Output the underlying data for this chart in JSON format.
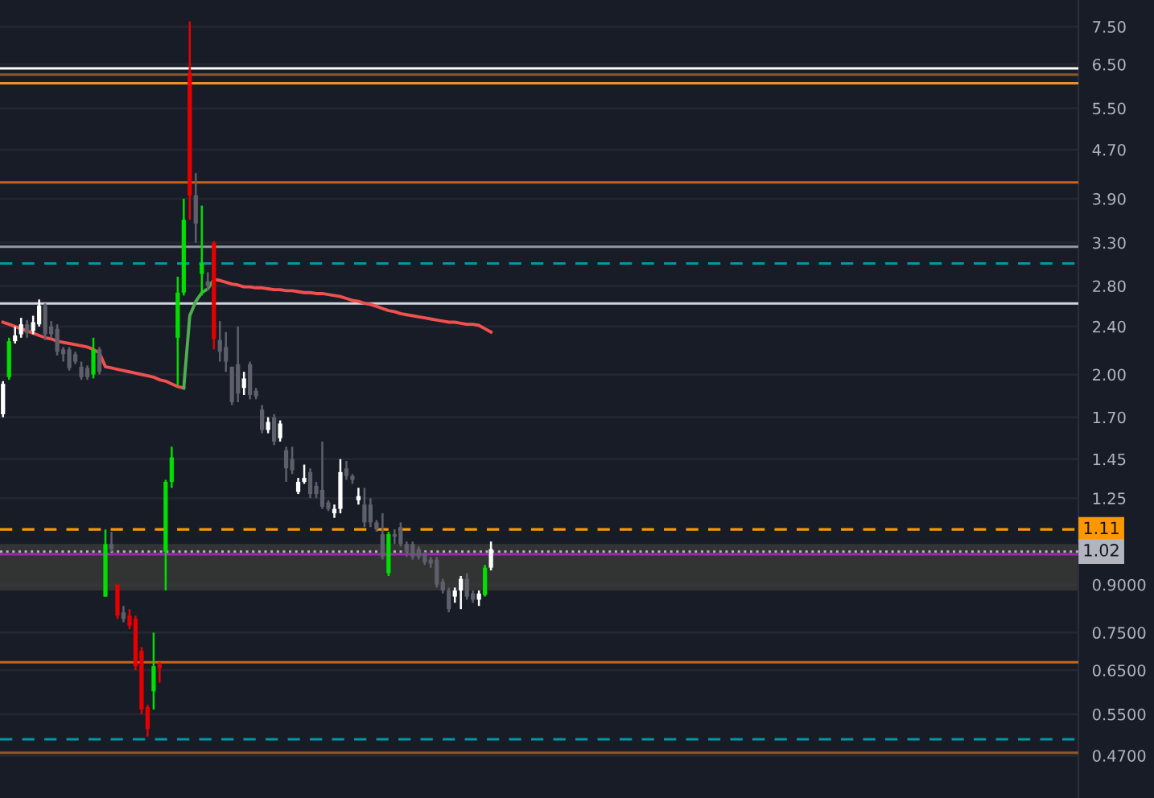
{
  "chart_data": {
    "type": "candlestick",
    "categories": [
      null,
      null,
      null,
      null,
      null,
      null,
      null,
      null,
      null,
      null,
      null,
      null,
      null,
      null,
      null,
      null,
      null,
      null,
      null,
      null,
      null,
      null,
      null,
      null,
      null,
      null,
      null,
      null,
      null,
      null,
      null,
      null,
      null,
      null,
      null,
      null,
      null,
      null,
      null,
      null,
      null,
      null,
      null,
      null,
      null,
      null,
      null,
      null,
      null,
      null,
      null,
      null,
      null,
      null,
      null,
      null,
      null,
      null,
      null,
      null,
      null,
      null,
      null,
      null,
      null,
      null,
      null,
      null,
      null,
      null,
      null,
      null,
      null,
      null,
      null,
      null,
      null,
      null,
      null,
      null,
      null,
      null,
      null,
      null,
      null,
      null,
      null,
      null,
      null,
      null,
      null,
      null,
      null,
      null,
      null,
      null,
      null,
      null,
      null,
      null,
      null,
      null,
      null,
      null,
      null,
      null,
      null,
      null,
      null,
      null,
      null,
      null,
      null,
      null,
      null,
      null,
      null,
      null,
      null,
      null,
      null,
      null,
      null,
      null,
      null,
      null,
      null,
      null,
      null,
      null,
      null,
      null,
      null,
      null,
      null,
      null,
      null,
      null,
      null,
      null,
      null,
      null,
      null,
      null,
      null,
      null,
      null,
      null,
      null,
      null,
      null,
      null,
      null,
      null,
      null,
      null,
      null,
      null,
      null,
      null,
      null,
      null,
      null,
      null,
      null,
      null,
      null,
      null,
      null,
      null,
      null,
      null,
      null,
      null,
      null,
      null,
      null,
      null,
      null
    ],
    "ohlc": [
      [
        1.72,
        1.95,
        1.7,
        1.93
      ],
      [
        1.98,
        2.3,
        1.96,
        2.27
      ],
      [
        2.27,
        2.4,
        2.25,
        2.32
      ],
      [
        2.33,
        2.48,
        2.3,
        2.42
      ],
      [
        2.42,
        2.46,
        2.3,
        2.34
      ],
      [
        2.36,
        2.5,
        2.33,
        2.44
      ],
      [
        2.42,
        2.66,
        2.4,
        2.6
      ],
      [
        2.6,
        2.62,
        2.28,
        2.33
      ],
      [
        2.4,
        2.45,
        2.3,
        2.33
      ],
      [
        2.38,
        2.42,
        2.15,
        2.18
      ],
      [
        2.2,
        2.22,
        2.1,
        2.16
      ],
      [
        2.2,
        2.22,
        2.03,
        2.05
      ],
      [
        2.16,
        2.18,
        2.08,
        2.1
      ],
      [
        2.06,
        2.1,
        1.96,
        1.98
      ],
      [
        2.05,
        2.07,
        1.96,
        1.98
      ],
      [
        2.0,
        2.3,
        1.97,
        2.2
      ],
      [
        2.2,
        2.22,
        2.0,
        2.02
      ],
      [
        0.86,
        1.11,
        0.86,
        1.05
      ],
      [
        1.05,
        1.1,
        1.02,
        1.03
      ],
      [
        0.9,
        0.9,
        0.79,
        0.8
      ],
      [
        0.81,
        0.83,
        0.78,
        0.79
      ],
      [
        0.8,
        0.82,
        0.76,
        0.77
      ],
      [
        0.79,
        0.8,
        0.65,
        0.66
      ],
      [
        0.7,
        0.71,
        0.55,
        0.56
      ],
      [
        0.565,
        0.57,
        0.505,
        0.52
      ],
      [
        0.6,
        0.75,
        0.56,
        0.66
      ],
      [
        0.665,
        0.67,
        0.62,
        0.655
      ],
      [
        1.02,
        1.34,
        0.88,
        1.33
      ],
      [
        1.33,
        1.52,
        1.3,
        1.46
      ],
      [
        2.3,
        2.9,
        1.92,
        2.73
      ],
      [
        2.73,
        3.9,
        2.7,
        3.6
      ],
      [
        6.3,
        7.65,
        3.6,
        3.95
      ],
      [
        3.95,
        4.3,
        3.3,
        3.55
      ],
      [
        2.93,
        3.8,
        2.7,
        3.05
      ],
      [
        2.85,
        2.95,
        2.75,
        2.8
      ],
      [
        3.3,
        3.32,
        2.2,
        2.29
      ],
      [
        2.28,
        2.45,
        2.1,
        2.18
      ],
      [
        2.22,
        2.35,
        2.02,
        2.1
      ],
      [
        2.06,
        2.06,
        1.78,
        1.8
      ],
      [
        2.08,
        2.4,
        1.8,
        1.86
      ],
      [
        1.9,
        2.02,
        1.85,
        1.97
      ],
      [
        2.08,
        2.1,
        1.82,
        1.85
      ],
      [
        1.88,
        1.9,
        1.82,
        1.84
      ],
      [
        1.75,
        1.78,
        1.6,
        1.62
      ],
      [
        1.62,
        1.7,
        1.6,
        1.67
      ],
      [
        1.7,
        1.72,
        1.53,
        1.55
      ],
      [
        1.57,
        1.68,
        1.55,
        1.66
      ],
      [
        1.5,
        1.52,
        1.33,
        1.4
      ],
      [
        1.45,
        1.52,
        1.37,
        1.39
      ],
      [
        1.28,
        1.35,
        1.27,
        1.33
      ],
      [
        1.33,
        1.42,
        1.32,
        1.35
      ],
      [
        1.38,
        1.4,
        1.25,
        1.27
      ],
      [
        1.31,
        1.33,
        1.25,
        1.27
      ],
      [
        1.29,
        1.55,
        1.2,
        1.21
      ],
      [
        1.23,
        1.24,
        1.19,
        1.2
      ],
      [
        1.18,
        1.22,
        1.16,
        1.2
      ],
      [
        1.2,
        1.45,
        1.18,
        1.38
      ],
      [
        1.4,
        1.44,
        1.34,
        1.36
      ],
      [
        1.36,
        1.37,
        1.32,
        1.34
      ],
      [
        1.24,
        1.3,
        1.22,
        1.26
      ],
      [
        1.22,
        1.3,
        1.12,
        1.14
      ],
      [
        1.22,
        1.25,
        1.12,
        1.14
      ],
      [
        1.14,
        1.15,
        1.1,
        1.11
      ],
      [
        1.09,
        1.18,
        0.99,
        1.0
      ],
      [
        0.94,
        1.1,
        0.93,
        1.09
      ],
      [
        1.09,
        1.11,
        1.05,
        1.08
      ],
      [
        1.12,
        1.14,
        1.04,
        1.05
      ],
      [
        1.05,
        1.06,
        1.0,
        1.02
      ],
      [
        1.05,
        1.06,
        0.99,
        1.0
      ],
      [
        1.03,
        1.04,
        0.99,
        1.0
      ],
      [
        1.01,
        1.02,
        0.97,
        0.98
      ],
      [
        0.99,
        1.0,
        0.96,
        0.975
      ],
      [
        0.99,
        1.0,
        0.89,
        0.9
      ],
      [
        0.91,
        0.92,
        0.87,
        0.88
      ],
      [
        0.88,
        0.89,
        0.81,
        0.82
      ],
      [
        0.86,
        0.89,
        0.84,
        0.88
      ],
      [
        0.88,
        0.93,
        0.82,
        0.92
      ],
      [
        0.92,
        0.94,
        0.85,
        0.86
      ],
      [
        0.87,
        0.88,
        0.84,
        0.85
      ],
      [
        0.85,
        0.88,
        0.83,
        0.87
      ],
      [
        0.865,
        0.97,
        0.86,
        0.96
      ],
      [
        0.96,
        1.06,
        0.95,
        1.03
      ],
      null,
      null,
      null,
      null,
      null,
      null,
      null,
      null,
      null,
      null,
      null,
      null,
      null,
      null,
      null,
      null,
      null,
      null,
      null,
      null,
      null,
      null,
      null,
      null,
      null,
      null,
      null,
      null,
      null,
      null,
      null,
      null,
      null,
      null,
      null,
      null,
      null,
      null,
      null,
      null,
      null,
      null,
      null,
      null,
      null,
      null,
      null,
      null,
      null,
      null,
      null,
      null,
      null,
      null,
      null,
      null,
      null,
      null,
      null,
      null,
      null,
      null,
      null,
      null,
      null,
      null,
      null,
      null,
      null,
      null,
      null,
      null,
      null,
      null,
      null,
      null,
      null,
      null,
      null,
      null,
      null,
      null,
      null,
      null,
      null,
      null,
      null,
      null,
      null,
      null,
      null,
      null,
      null,
      null,
      null,
      null,
      null
    ],
    "colors": [
      "#ffffff",
      "#00e000",
      "#ffffff",
      "#ffffff",
      "#5d606b",
      "#ffffff",
      "#ffffff",
      "#5d606b",
      "#5d606b",
      "#5d606b",
      "#5d606b",
      "#5d606b",
      "#5d606b",
      "#5d606b",
      "#5d606b",
      "#00e000",
      "#5d606b",
      "#00e000",
      "#5d606b",
      "#e80000",
      "#5d606b",
      "#e80000",
      "#e80000",
      "#e80000",
      "#e80000",
      "#00e000",
      "#e80000",
      "#00e000",
      "#00e000",
      "#00e000",
      "#00e000",
      "#e80000",
      "#5d606b",
      "#00e000",
      "#5d606b",
      "#e80000",
      "#5d606b",
      "#5d606b",
      "#5d606b",
      "#5d606b",
      "#ffffff",
      "#5d606b",
      "#5d606b",
      "#5d606b",
      "#ffffff",
      "#5d606b",
      "#ffffff",
      "#5d606b",
      "#5d606b",
      "#ffffff",
      "#ffffff",
      "#5d606b",
      "#5d606b",
      "#5d606b",
      "#5d606b",
      "#ffffff",
      "#ffffff",
      "#5d606b",
      "#5d606b",
      "#ffffff",
      "#5d606b",
      "#5d606b",
      "#5d606b",
      "#5d606b",
      "#00e000",
      "#5d606b",
      "#5d606b",
      "#5d606b",
      "#5d606b",
      "#5d606b",
      "#5d606b",
      "#5d606b",
      "#5d606b",
      "#5d606b",
      "#5d606b",
      "#ffffff",
      "#ffffff",
      "#5d606b",
      "#5d606b",
      "#ffffff",
      "#00e000",
      "#ffffff",
      null,
      null,
      null,
      null,
      null,
      null,
      null,
      null,
      null,
      null,
      null,
      null,
      null,
      null,
      null,
      null,
      null,
      null,
      null,
      null,
      null,
      null,
      null,
      null,
      null,
      null,
      null,
      null,
      null,
      null,
      null,
      null,
      null,
      null,
      null,
      null,
      null,
      null,
      null,
      null,
      null,
      null,
      null,
      null,
      null,
      null,
      null,
      null,
      null,
      null,
      null,
      null,
      null,
      null,
      null,
      null,
      null,
      null,
      null,
      null,
      null,
      null,
      null,
      null,
      null,
      null,
      null,
      null,
      null,
      null,
      null,
      null,
      null,
      null,
      null,
      null,
      null,
      null,
      null,
      null,
      null,
      null,
      null,
      null,
      null,
      null,
      null,
      null,
      null,
      null,
      null,
      null,
      null,
      null,
      null,
      null,
      null
    ],
    "series": [
      {
        "type": "line",
        "color": "#f05050",
        "values": [
          2.44,
          2.42,
          2.4,
          2.38,
          2.36,
          2.34,
          2.32,
          2.3,
          2.29,
          2.27,
          2.26,
          2.25,
          2.24,
          2.23,
          2.22,
          2.2,
          2.17,
          2.06,
          2.05,
          2.04,
          2.03,
          2.02,
          2.01,
          2.0,
          1.99,
          1.98,
          1.96,
          1.95,
          1.93,
          1.91,
          1.9,
          null,
          null,
          null,
          null,
          2.87,
          2.86,
          2.84,
          2.82,
          2.81,
          2.79,
          2.79,
          2.78,
          2.78,
          2.77,
          2.76,
          2.76,
          2.75,
          2.75,
          2.74,
          2.73,
          2.73,
          2.72,
          2.72,
          2.71,
          2.7,
          2.69,
          2.67,
          2.65,
          2.64,
          2.62,
          2.61,
          2.59,
          2.57,
          2.55,
          2.54,
          2.52,
          2.51,
          2.5,
          2.49,
          2.48,
          2.47,
          2.46,
          2.45,
          2.44,
          2.44,
          2.43,
          2.42,
          2.42,
          2.41,
          2.38,
          2.35,
          null,
          null,
          null,
          null,
          null,
          null,
          null,
          null,
          null,
          null,
          null,
          null,
          null,
          null,
          null,
          null,
          null,
          null,
          null,
          null,
          null,
          null,
          null,
          null,
          null,
          null,
          null,
          null,
          null,
          null,
          null,
          null,
          null,
          null,
          null,
          null,
          null,
          null,
          null,
          null,
          null,
          null,
          null,
          null,
          null,
          null,
          null,
          null,
          null,
          null,
          null,
          null,
          null,
          null,
          null,
          null,
          null,
          null,
          null,
          null,
          null,
          null,
          null,
          null,
          null,
          null,
          null,
          null,
          null,
          null,
          null,
          null,
          null,
          null,
          null,
          null,
          null,
          null,
          null,
          null,
          null,
          null,
          null,
          null,
          null,
          null,
          null,
          null,
          null,
          null,
          null,
          null,
          null,
          null,
          null,
          null,
          null
        ]
      },
      {
        "type": "line",
        "color": "#4caf50",
        "values": [
          null,
          null,
          null,
          null,
          null,
          null,
          null,
          null,
          null,
          null,
          null,
          null,
          null,
          null,
          null,
          null,
          null,
          null,
          null,
          null,
          null,
          null,
          null,
          null,
          null,
          null,
          null,
          null,
          null,
          null,
          1.9,
          2.5,
          2.64,
          2.73,
          2.77,
          2.87,
          null,
          null,
          null,
          null,
          null,
          null,
          null,
          null,
          null,
          null,
          null,
          null,
          null,
          null,
          null,
          null,
          null,
          null,
          null,
          null,
          null,
          null,
          null,
          null,
          null,
          null,
          null,
          null,
          null,
          null,
          null,
          null,
          null,
          null,
          null,
          null,
          null,
          null,
          null,
          null,
          null,
          null,
          null,
          null,
          null,
          null,
          null,
          null,
          null,
          null,
          null,
          null,
          null,
          null,
          null,
          null,
          null,
          null,
          null,
          null,
          null,
          null,
          null,
          null,
          null,
          null,
          null,
          null,
          null,
          null,
          null,
          null,
          null,
          null,
          null,
          null,
          null,
          null,
          null,
          null,
          null,
          null,
          null,
          null,
          null,
          null,
          null,
          null,
          null,
          null,
          null,
          null,
          null,
          null,
          null,
          null,
          null,
          null,
          null,
          null,
          null,
          null,
          null,
          null,
          null,
          null,
          null,
          null,
          null,
          null,
          null,
          null,
          null,
          null,
          null,
          null,
          null,
          null,
          null,
          null,
          null,
          null,
          null,
          null,
          null,
          null,
          null,
          null,
          null,
          null,
          null,
          null,
          null,
          null,
          null,
          null,
          null,
          null,
          null,
          null,
          null,
          null,
          null
        ]
      }
    ],
    "ref_lines": [
      {
        "axis": "y",
        "value": 6.4,
        "color": "#ffffff",
        "line_style": "solid"
      },
      {
        "axis": "y",
        "value": 6.25,
        "color": "#8a5a2a",
        "line_style": "solid"
      },
      {
        "axis": "y",
        "value": 6.05,
        "color": "#e8922a",
        "line_style": "solid"
      },
      {
        "axis": "y",
        "value": 4.15,
        "color": "#c8641a",
        "line_style": "solid"
      },
      {
        "axis": "y",
        "value": 3.25,
        "color": "#9598a1",
        "line_style": "solid"
      },
      {
        "axis": "y",
        "value": 3.05,
        "color": "#0097a7",
        "line_style": "dashed"
      },
      {
        "axis": "y",
        "value": 2.62,
        "color": "#d1d4dc",
        "line_style": "solid"
      },
      {
        "axis": "y",
        "value": 1.11,
        "color": "#ff9800",
        "line_style": "dashed",
        "label": "1.11"
      },
      {
        "axis": "y",
        "value": 1.02,
        "color": "#b2b5be",
        "line_style": "dotted",
        "label": "1.02"
      },
      {
        "axis": "y",
        "value": 1.01,
        "color": "#9c27b0",
        "line_style": "solid"
      },
      {
        "axis": "y",
        "value": 0.67,
        "color": "#c8641a",
        "line_style": "solid"
      },
      {
        "axis": "y",
        "value": 0.5,
        "color": "#0097a7",
        "line_style": "dashed"
      },
      {
        "axis": "y",
        "value": 0.475,
        "color": "#8a5a2a",
        "line_style": "solid"
      }
    ],
    "bands": [
      {
        "axis": "y",
        "from": 0.88,
        "to": 1.05,
        "color": "#3a3b38"
      }
    ],
    "log": true,
    "ylim": [
      0.4,
      8.3
    ],
    "yticks": [
      {
        "value": 7.5,
        "label": "7.50"
      },
      {
        "value": 6.5,
        "label": "6.50"
      },
      {
        "value": 5.5,
        "label": "5.50"
      },
      {
        "value": 4.7,
        "label": "4.70"
      },
      {
        "value": 3.9,
        "label": "3.90"
      },
      {
        "value": 3.3,
        "label": "3.30"
      },
      {
        "value": 2.8,
        "label": "2.80"
      },
      {
        "value": 2.4,
        "label": "2.40"
      },
      {
        "value": 2.0,
        "label": "2.00"
      },
      {
        "value": 1.7,
        "label": "1.70"
      },
      {
        "value": 1.45,
        "label": "1.45"
      },
      {
        "value": 1.25,
        "label": "1.25"
      },
      {
        "value": 0.9,
        "label": "0.9000"
      },
      {
        "value": 0.75,
        "label": "0.7500"
      },
      {
        "value": 0.65,
        "label": "0.6500"
      },
      {
        "value": 0.55,
        "label": "0.5500"
      },
      {
        "value": 0.47,
        "label": "0.4700"
      }
    ],
    "grid": "y",
    "legend": false,
    "tick_labels": "y"
  }
}
